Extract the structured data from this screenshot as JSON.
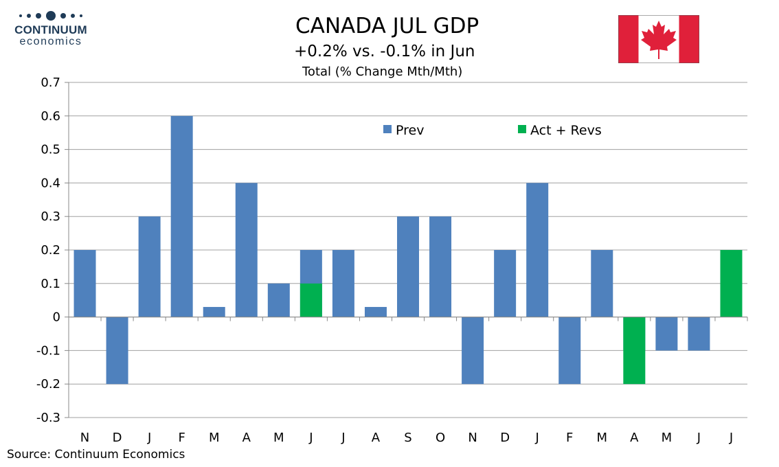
{
  "logo": {
    "name": "CONTINUUM",
    "sub": "economics",
    "color": "#1f3b57"
  },
  "header": {
    "title": "CANADA JUL GDP",
    "subtitle": "+0.2% vs. -0.1% in Jun",
    "chart_subtitle": "Total (% Change Mth/Mth)"
  },
  "flag": {
    "icon": "canada-flag-icon",
    "red": "#e0203a",
    "white": "#ffffff"
  },
  "source": "Source: Continuum Economics",
  "chart_data": {
    "type": "bar",
    "categories": [
      "N",
      "D",
      "J",
      "F",
      "M",
      "A",
      "M",
      "J",
      "J",
      "A",
      "S",
      "O",
      "N",
      "D",
      "J",
      "F",
      "M",
      "A",
      "M",
      "J",
      "J"
    ],
    "series": [
      {
        "name": "Prev",
        "color": "#4f81bd",
        "values": [
          0.2,
          -0.2,
          0.3,
          0.6,
          0.03,
          0.4,
          0.1,
          0.2,
          0.2,
          0.03,
          0.3,
          0.3,
          -0.2,
          0.2,
          0.4,
          -0.2,
          0.2,
          -0.1,
          -0.1,
          -0.1,
          null
        ]
      },
      {
        "name": "Act + Revs",
        "color": "#00b050",
        "values": [
          null,
          null,
          null,
          null,
          null,
          null,
          null,
          0.1,
          null,
          null,
          null,
          null,
          null,
          null,
          null,
          null,
          null,
          -0.2,
          null,
          null,
          0.2
        ]
      }
    ],
    "yticks": [
      "0.7",
      "0.6",
      "0.5",
      "0.4",
      "0.3",
      "0.2",
      "0.1",
      "0",
      "-0.1",
      "-0.2",
      "-0.3"
    ],
    "ylim": [
      -0.3,
      0.7
    ],
    "grid": true,
    "legend": "top-center"
  }
}
